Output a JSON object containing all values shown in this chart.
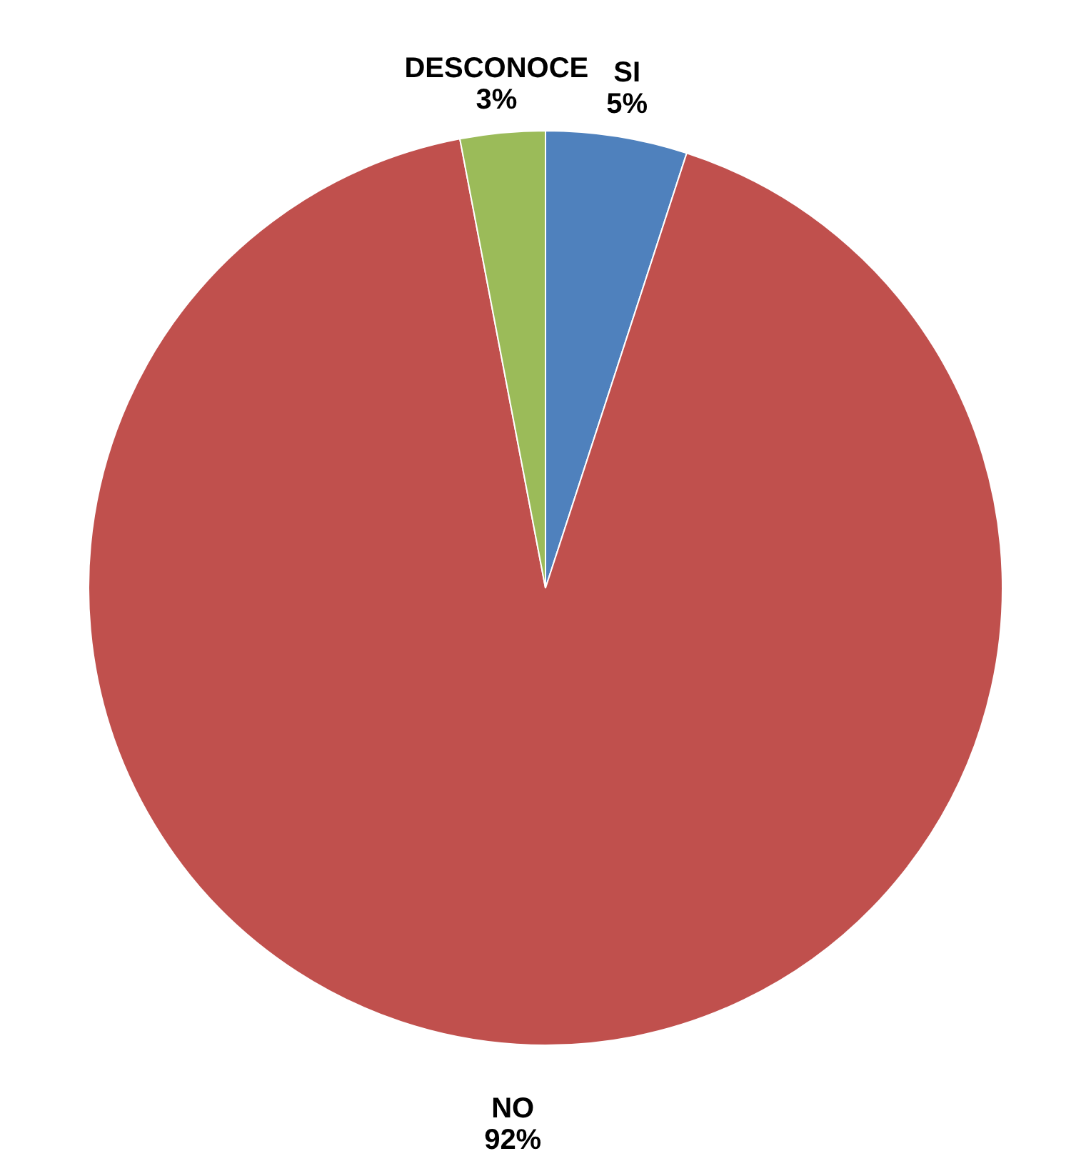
{
  "chart_data": {
    "type": "pie",
    "categories": [
      "SI",
      "NO",
      "DESCONOCE"
    ],
    "values": [
      5,
      92,
      3
    ],
    "value_labels": [
      "5%",
      "92%",
      "3%"
    ],
    "colors": [
      "#4f81bd",
      "#c0504d",
      "#9bbb59"
    ],
    "legend": false
  }
}
